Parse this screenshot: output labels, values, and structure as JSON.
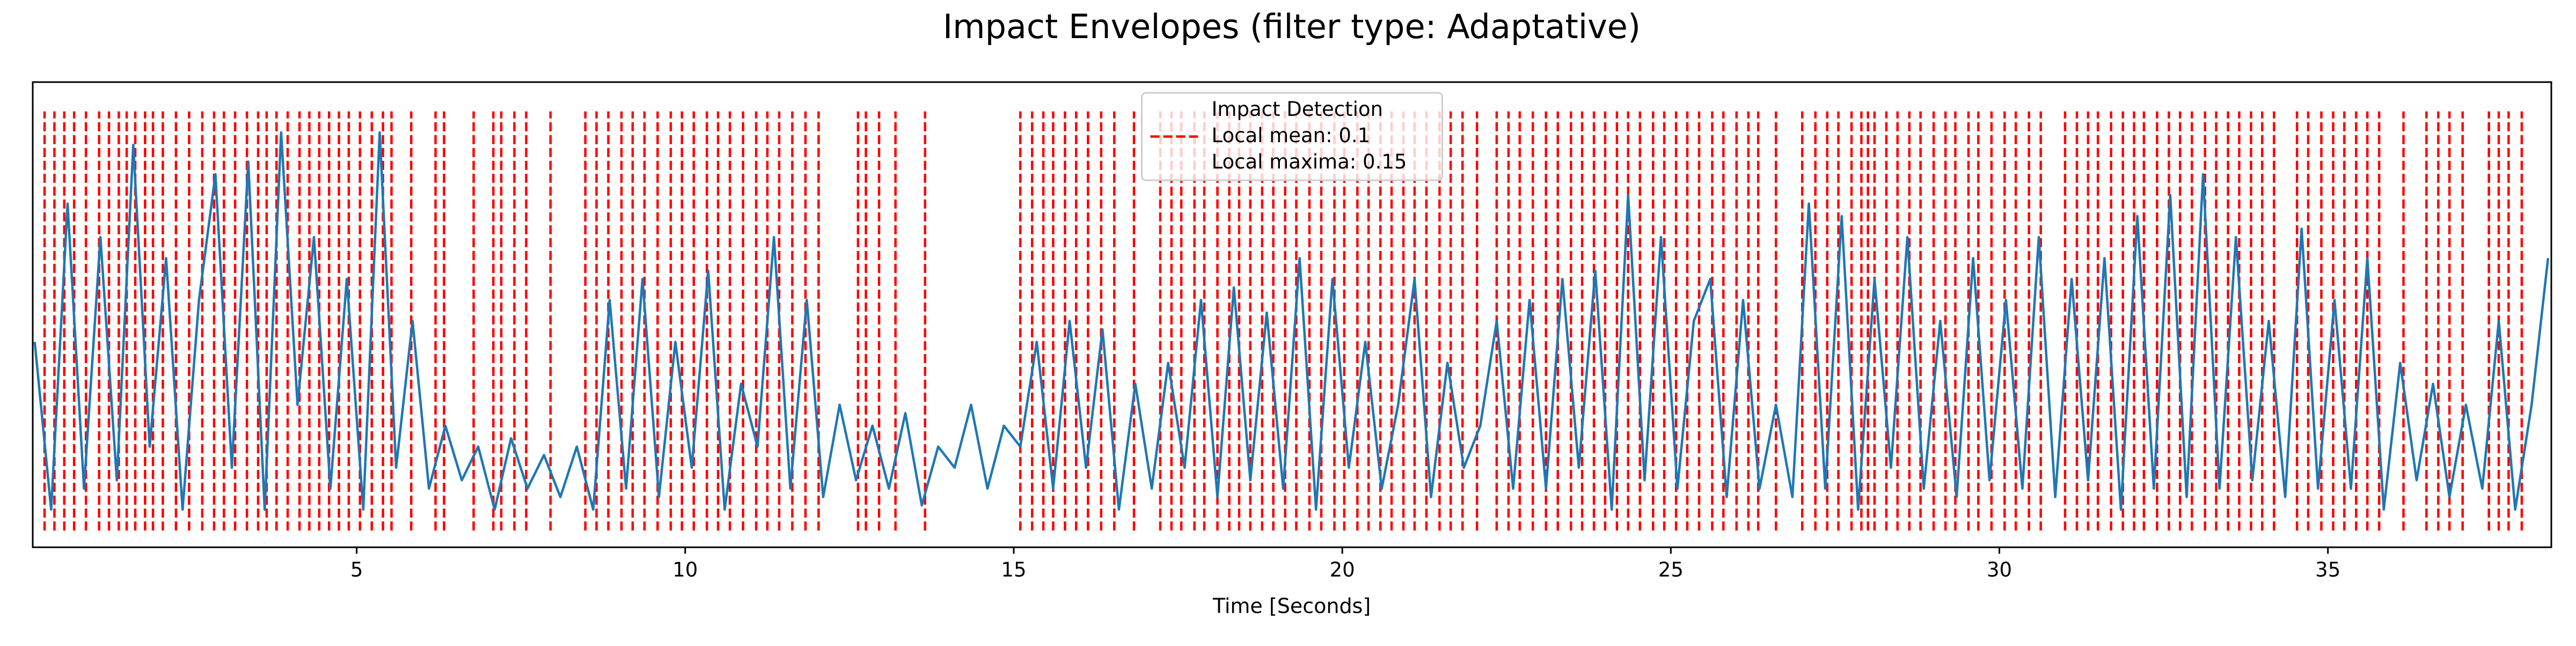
{
  "chart_data": {
    "type": "line",
    "title": "Impact Envelopes (filter type: Adaptative)",
    "xlabel": "Time [Seconds]",
    "xlim": [
      0.07,
      38.4
    ],
    "xticks": [
      5,
      10,
      15,
      20,
      25,
      30,
      35
    ],
    "ylim": [
      -0.04,
      1.07
    ],
    "grid": false,
    "series": [
      {
        "color": "#1f77b4",
        "x": [
          0.1,
          0.35,
          0.6,
          0.85,
          1.1,
          1.35,
          1.6,
          1.85,
          2.1,
          2.35,
          2.6,
          2.85,
          3.1,
          3.35,
          3.6,
          3.85,
          4.1,
          4.35,
          4.6,
          4.85,
          5.1,
          5.35,
          5.6,
          5.85,
          6.1,
          6.35,
          6.6,
          6.85,
          7.1,
          7.35,
          7.6,
          7.85,
          8.1,
          8.35,
          8.6,
          8.85,
          9.1,
          9.35,
          9.6,
          9.85,
          10.1,
          10.35,
          10.6,
          10.85,
          11.1,
          11.35,
          11.6,
          11.85,
          12.1,
          12.35,
          12.6,
          12.85,
          13.1,
          13.35,
          13.6,
          13.85,
          14.1,
          14.35,
          14.6,
          14.85,
          15.1,
          15.35,
          15.6,
          15.85,
          16.1,
          16.35,
          16.6,
          16.85,
          17.1,
          17.35,
          17.6,
          17.85,
          18.1,
          18.35,
          18.6,
          18.85,
          19.1,
          19.35,
          19.6,
          19.85,
          20.1,
          20.35,
          20.6,
          20.85,
          21.1,
          21.35,
          21.6,
          21.85,
          22.1,
          22.35,
          22.6,
          22.85,
          23.1,
          23.35,
          23.6,
          23.85,
          24.1,
          24.35,
          24.6,
          24.85,
          25.1,
          25.35,
          25.6,
          25.85,
          26.1,
          26.35,
          26.6,
          26.85,
          27.1,
          27.35,
          27.6,
          27.85,
          28.1,
          28.35,
          28.6,
          28.85,
          29.1,
          29.35,
          29.6,
          29.85,
          30.1,
          30.35,
          30.6,
          30.85,
          31.1,
          31.35,
          31.6,
          31.85,
          32.1,
          32.35,
          32.6,
          32.85,
          33.1,
          33.35,
          33.6,
          33.85,
          34.1,
          34.35,
          34.6,
          34.85,
          35.1,
          35.35,
          35.6,
          35.85,
          36.1,
          36.35,
          36.6,
          36.85,
          37.1,
          37.35,
          37.6,
          37.85,
          38.1,
          38.35
        ],
        "values": [
          0.45,
          0.05,
          0.78,
          0.1,
          0.7,
          0.12,
          0.92,
          0.2,
          0.65,
          0.05,
          0.55,
          0.85,
          0.15,
          0.88,
          0.05,
          0.95,
          0.3,
          0.7,
          0.1,
          0.6,
          0.05,
          0.95,
          0.15,
          0.5,
          0.1,
          0.25,
          0.12,
          0.2,
          0.05,
          0.22,
          0.1,
          0.18,
          0.08,
          0.2,
          0.05,
          0.55,
          0.1,
          0.6,
          0.08,
          0.45,
          0.15,
          0.62,
          0.05,
          0.35,
          0.2,
          0.7,
          0.1,
          0.55,
          0.08,
          0.3,
          0.12,
          0.25,
          0.1,
          0.28,
          0.06,
          0.2,
          0.15,
          0.3,
          0.1,
          0.25,
          0.2,
          0.45,
          0.1,
          0.5,
          0.15,
          0.48,
          0.05,
          0.35,
          0.1,
          0.4,
          0.15,
          0.55,
          0.08,
          0.58,
          0.12,
          0.52,
          0.1,
          0.65,
          0.05,
          0.6,
          0.15,
          0.45,
          0.1,
          0.3,
          0.6,
          0.08,
          0.4,
          0.15,
          0.25,
          0.5,
          0.1,
          0.55,
          0.1,
          0.6,
          0.15,
          0.62,
          0.05,
          0.8,
          0.12,
          0.7,
          0.1,
          0.5,
          0.6,
          0.08,
          0.55,
          0.1,
          0.3,
          0.08,
          0.78,
          0.1,
          0.75,
          0.05,
          0.6,
          0.15,
          0.7,
          0.1,
          0.5,
          0.08,
          0.65,
          0.12,
          0.55,
          0.1,
          0.7,
          0.08,
          0.6,
          0.12,
          0.65,
          0.05,
          0.75,
          0.1,
          0.8,
          0.08,
          0.85,
          0.1,
          0.7,
          0.12,
          0.5,
          0.08,
          0.72,
          0.1,
          0.55,
          0.1,
          0.65,
          0.05,
          0.4,
          0.12,
          0.35,
          0.08,
          0.3,
          0.1,
          0.5,
          0.05,
          0.3,
          0.65
        ]
      }
    ],
    "vlines": {
      "color": "#ff0000",
      "ymin": 0,
      "ymax": 1,
      "x": [
        0.25,
        0.4,
        0.55,
        0.7,
        0.88,
        1.08,
        1.23,
        1.38,
        1.5,
        1.63,
        1.78,
        1.9,
        2.05,
        2.25,
        2.45,
        2.65,
        2.83,
        2.98,
        3.15,
        3.33,
        3.5,
        3.63,
        3.78,
        3.95,
        4.13,
        4.28,
        4.43,
        4.58,
        4.73,
        4.88,
        5.05,
        5.23,
        5.4,
        5.53,
        5.83,
        6.2,
        6.33,
        6.78,
        7.08,
        7.2,
        7.4,
        7.58,
        7.95,
        8.48,
        8.65,
        8.83,
        9.03,
        9.2,
        9.38,
        9.58,
        9.78,
        9.95,
        10.13,
        10.33,
        10.5,
        10.68,
        10.88,
        11.08,
        11.25,
        11.43,
        11.63,
        11.83,
        12.03,
        12.63,
        12.75,
        12.95,
        13.2,
        13.65,
        15.1,
        15.28,
        15.45,
        15.6,
        15.78,
        15.95,
        16.13,
        16.33,
        16.53,
        16.83,
        17.23,
        17.4,
        17.55,
        17.75,
        17.9,
        18.1,
        18.28,
        18.43,
        18.6,
        18.78,
        18.95,
        19.13,
        19.3,
        19.5,
        19.68,
        19.88,
        20.03,
        20.23,
        20.4,
        20.58,
        20.75,
        20.93,
        21.1,
        21.28,
        21.48,
        21.65,
        21.83,
        22.05,
        22.35,
        22.53,
        22.7,
        22.9,
        23.1,
        23.28,
        23.48,
        23.65,
        23.83,
        24.0,
        24.18,
        24.35,
        24.53,
        24.73,
        24.9,
        25.08,
        25.25,
        25.43,
        25.63,
        25.8,
        26.0,
        26.18,
        26.33,
        26.6,
        27.0,
        27.2,
        27.38,
        27.55,
        27.75,
        27.9,
        28.0,
        28.1,
        28.28,
        28.45,
        28.63,
        28.8,
        29.0,
        29.18,
        29.33,
        29.53,
        29.68,
        29.88,
        30.08,
        30.25,
        30.45,
        30.63,
        31.0,
        31.18,
        31.35,
        31.5,
        31.7,
        31.88,
        32.05,
        32.2,
        32.4,
        32.58,
        32.75,
        32.93,
        33.13,
        33.3,
        33.48,
        33.65,
        33.83,
        34.0,
        34.18,
        34.53,
        34.7,
        34.9,
        35.08,
        35.25,
        35.43,
        35.6,
        35.78,
        36.15,
        36.5,
        36.68,
        36.85,
        37.05,
        37.45,
        37.6,
        37.75,
        37.95
      ]
    },
    "legend": {
      "loc": "upper center",
      "entries": [
        {
          "label": "Impact Detection"
        },
        {
          "label": "Local mean: 0.1",
          "color": "#ff0000",
          "dashed": true
        },
        {
          "label": "Local maxima: 0.15"
        }
      ]
    }
  }
}
